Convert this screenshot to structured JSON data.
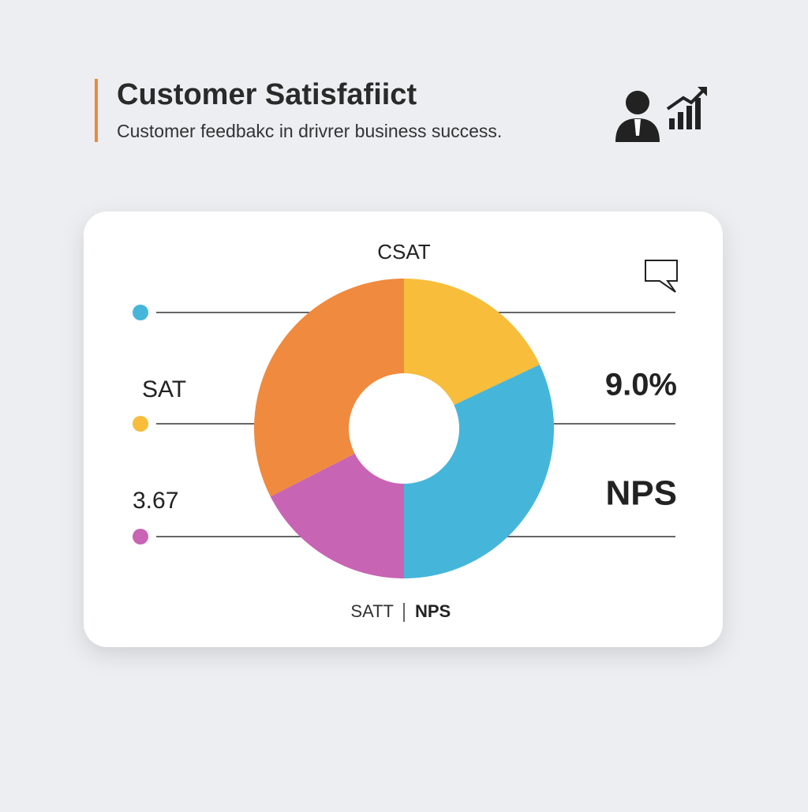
{
  "header": {
    "title": "Customer Satisfafiict",
    "subtitle": "Customer feedbakc in drivrer business success."
  },
  "chart_data": {
    "type": "pie",
    "donut": true,
    "title": "CSAT",
    "categories": [
      null,
      null,
      null,
      null
    ],
    "values": [
      18,
      32,
      17.5,
      32.5
    ],
    "colors": [
      "#f7bd3b",
      "#45b6d9",
      "#c864b4",
      "#f08a3e"
    ],
    "annotations": {
      "left": [
        "SAT",
        "3.67"
      ],
      "right": [
        "9.0%",
        "NPS"
      ]
    },
    "footer": [
      "SATT",
      "NPS"
    ]
  }
}
